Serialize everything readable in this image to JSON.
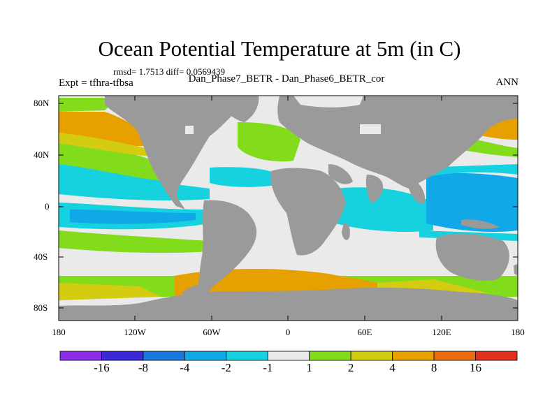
{
  "title": "Ocean Potential Temperature at 5m (in C)",
  "stats_text": "rmsd= 1.7513 diff= 0.0569439",
  "expt_label": "Expt = tfhra-tfbsa",
  "case_name": "Dan_Phase7_BETR - Dan_Phase6_BETR_cor",
  "season": "ANN",
  "y_ticks": [
    "80N",
    "40N",
    "0",
    "40S",
    "80S"
  ],
  "x_ticks": [
    "180",
    "120W",
    "60W",
    "0",
    "60E",
    "120E",
    "180"
  ],
  "colorbar": {
    "labels": [
      "-16",
      "-8",
      "-4",
      "-2",
      "-1",
      "1",
      "2",
      "4",
      "8",
      "16"
    ],
    "colors": [
      "#8c2ee6",
      "#3a2ad6",
      "#1a78dc",
      "#10a8e6",
      "#16d2de",
      "#eaeaea",
      "#82dc1c",
      "#d4cc10",
      "#e6a000",
      "#e86c10",
      "#e0301c"
    ]
  },
  "map_colors": {
    "land": "#9a9a9a",
    "ocean_background": "#eaeaea"
  }
}
